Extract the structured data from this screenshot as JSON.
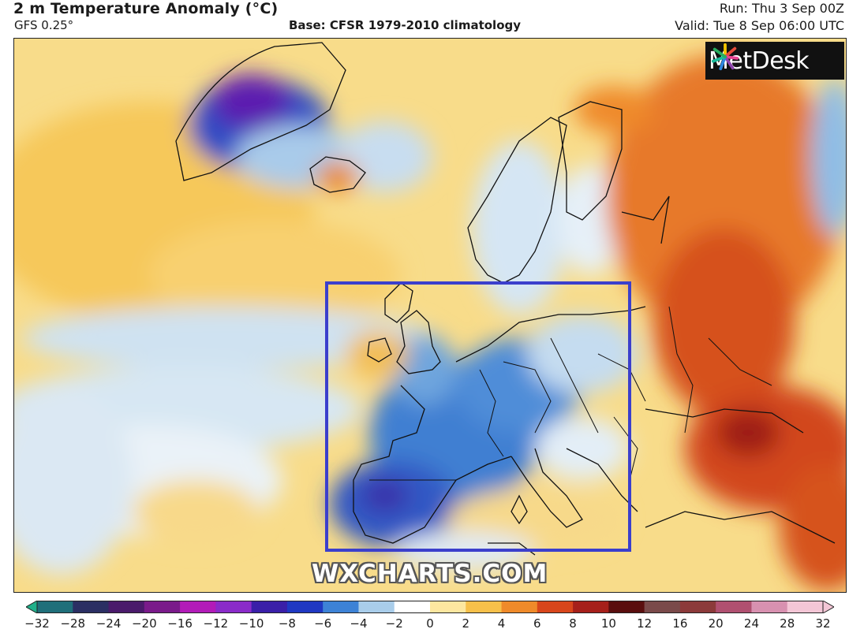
{
  "header": {
    "title": "2 m Temperature Anomaly (°C)",
    "model": "GFS 0.25°",
    "base": "Base: CFSR 1979-2010 climatology",
    "run": "Run: Thu 3 Sep 00Z",
    "valid": "Valid: Tue 8 Sep 06:00 UTC"
  },
  "logo": {
    "text": "MetDesk",
    "icon": "metdesk-star-icon"
  },
  "watermark": "WXCHARTS.COM",
  "highlight_box": {
    "color": "#3b3fcc",
    "label": ""
  },
  "colorbar": {
    "unit": "°C",
    "ticks": [
      "−32",
      "−28",
      "−24",
      "−20",
      "−16",
      "−12",
      "−10",
      "−8",
      "−6",
      "−4",
      "−2",
      "0",
      "2",
      "4",
      "6",
      "8",
      "10",
      "12",
      "16",
      "20",
      "24",
      "28",
      "32"
    ],
    "colors": [
      "#1fb08a",
      "#1f6f7a",
      "#2b2f63",
      "#4a1a6b",
      "#7a1a8a",
      "#b21bb8",
      "#8a2bc9",
      "#3a1fa8",
      "#1f38c2",
      "#3d82d6",
      "#a9cdea",
      "#ffffff",
      "#fde7a0",
      "#f7c04a",
      "#ef8a2a",
      "#d8461b",
      "#a6201a",
      "#5a0e0e",
      "#7a4a4a",
      "#8c3a3a",
      "#b05070",
      "#d891b0",
      "#f4c6d6"
    ]
  }
}
